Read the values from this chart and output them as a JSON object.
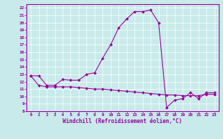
{
  "xlabel": "Windchill (Refroidissement éolien,°C)",
  "background_color": "#c8eaea",
  "line_color": "#990099",
  "xlim": [
    -0.5,
    23.5
  ],
  "ylim": [
    8,
    22.5
  ],
  "yticks": [
    8,
    9,
    10,
    11,
    12,
    13,
    14,
    15,
    16,
    17,
    18,
    19,
    20,
    21,
    22
  ],
  "xticks": [
    0,
    1,
    2,
    3,
    4,
    5,
    6,
    7,
    8,
    9,
    10,
    11,
    12,
    13,
    14,
    15,
    16,
    17,
    18,
    19,
    20,
    21,
    22,
    23
  ],
  "curve1_x": [
    0,
    1,
    2,
    3,
    4,
    5,
    6,
    7,
    8,
    9,
    10,
    11,
    12,
    13,
    14,
    15,
    16,
    17,
    18,
    19,
    20,
    21,
    22,
    23
  ],
  "curve1_y": [
    12.8,
    12.8,
    11.5,
    11.5,
    12.3,
    12.2,
    12.2,
    13.0,
    13.2,
    15.2,
    17.0,
    19.3,
    20.5,
    21.5,
    21.5,
    21.7,
    20.0,
    8.5,
    9.5,
    9.7,
    10.5,
    9.7,
    10.5,
    10.5
  ],
  "curve2_x": [
    0,
    1,
    2,
    3,
    4,
    5,
    6,
    7,
    8,
    9,
    10,
    11,
    12,
    13,
    14,
    15,
    16,
    17,
    18,
    19,
    20,
    21,
    22,
    23
  ],
  "curve2_y": [
    12.8,
    11.5,
    11.3,
    11.3,
    11.3,
    11.3,
    11.2,
    11.1,
    11.0,
    11.0,
    10.9,
    10.8,
    10.7,
    10.6,
    10.5,
    10.4,
    10.3,
    10.2,
    10.2,
    10.1,
    10.1,
    10.1,
    10.3,
    10.3
  ],
  "figsize": [
    3.2,
    2.0
  ],
  "dpi": 100
}
